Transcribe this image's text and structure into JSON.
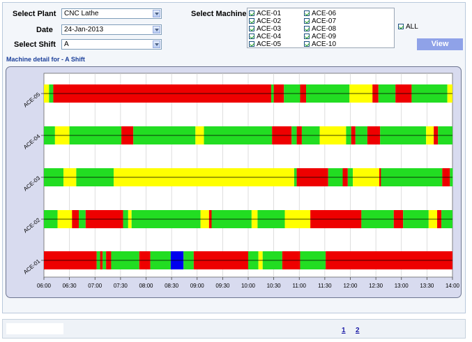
{
  "filters": {
    "plant_label": "Select Plant",
    "plant_value": "CNC Lathe",
    "date_label": "Date",
    "date_value": "24-Jan-2013",
    "shift_label": "Select Shift",
    "shift_value": "A",
    "machine_label": "Select Machine",
    "machines": [
      "ACE-01",
      "ACE-02",
      "ACE-03",
      "ACE-04",
      "ACE-05",
      "ACE-06",
      "ACE-07",
      "ACE-08",
      "ACE-09",
      "ACE-10"
    ],
    "all_label": "ALL",
    "view_label": "View"
  },
  "section_title": "Machine detail for - A Shift",
  "pagination": [
    "1",
    "2"
  ],
  "chart_data": {
    "type": "timeline",
    "x_ticks": [
      "06:00",
      "06:30",
      "07:00",
      "07:30",
      "08:00",
      "08:30",
      "09:00",
      "09:30",
      "10:00",
      "10:30",
      "11:00",
      "11:30",
      "12:00",
      "12:30",
      "13:00",
      "13:30",
      "14:00"
    ],
    "x_range": [
      "06:00",
      "14:00"
    ],
    "grid": true,
    "colors": {
      "R": "#ee0000",
      "G": "#22dd22",
      "Y": "#ffff00",
      "B": "#0000ee"
    },
    "rows": [
      {
        "name": "ACE-05",
        "segments": [
          [
            "06:00",
            "06:06",
            "Y"
          ],
          [
            "06:06",
            "06:11",
            "G"
          ],
          [
            "06:11",
            "10:27",
            "R"
          ],
          [
            "10:27",
            "10:30",
            "G"
          ],
          [
            "10:30",
            "10:42",
            "R"
          ],
          [
            "10:42",
            "11:01",
            "G"
          ],
          [
            "11:01",
            "11:08",
            "R"
          ],
          [
            "11:08",
            "11:59",
            "G"
          ],
          [
            "11:59",
            "12:26",
            "Y"
          ],
          [
            "12:26",
            "12:33",
            "R"
          ],
          [
            "12:33",
            "12:53",
            "G"
          ],
          [
            "12:53",
            "13:12",
            "R"
          ],
          [
            "13:12",
            "13:54",
            "G"
          ],
          [
            "13:54",
            "14:31",
            "Y"
          ]
        ]
      },
      {
        "name": "ACE-04",
        "segments": [
          [
            "06:00",
            "06:13",
            "G"
          ],
          [
            "06:13",
            "06:30",
            "Y"
          ],
          [
            "06:30",
            "07:31",
            "G"
          ],
          [
            "07:31",
            "07:45",
            "R"
          ],
          [
            "07:45",
            "08:58",
            "G"
          ],
          [
            "08:58",
            "09:08",
            "Y"
          ],
          [
            "09:08",
            "10:28",
            "G"
          ],
          [
            "10:28",
            "10:51",
            "R"
          ],
          [
            "10:51",
            "10:57",
            "G"
          ],
          [
            "10:57",
            "11:03",
            "R"
          ],
          [
            "11:03",
            "11:24",
            "G"
          ],
          [
            "11:24",
            "11:55",
            "Y"
          ],
          [
            "11:55",
            "12:01",
            "G"
          ],
          [
            "12:01",
            "12:06",
            "R"
          ],
          [
            "12:06",
            "12:20",
            "G"
          ],
          [
            "12:20",
            "12:35",
            "R"
          ],
          [
            "12:35",
            "13:29",
            "G"
          ],
          [
            "13:29",
            "13:38",
            "Y"
          ],
          [
            "13:38",
            "13:43",
            "R"
          ],
          [
            "13:43",
            "14:00",
            "G"
          ]
        ]
      },
      {
        "name": "ACE-03",
        "segments": [
          [
            "06:00",
            "06:23",
            "G"
          ],
          [
            "06:23",
            "06:38",
            "Y"
          ],
          [
            "06:38",
            "07:22",
            "G"
          ],
          [
            "07:22",
            "10:54",
            "Y"
          ],
          [
            "10:54",
            "10:57",
            "G"
          ],
          [
            "10:57",
            "11:34",
            "R"
          ],
          [
            "11:34",
            "11:51",
            "G"
          ],
          [
            "11:51",
            "11:57",
            "R"
          ],
          [
            "11:57",
            "12:03",
            "G"
          ],
          [
            "12:03",
            "12:34",
            "Y"
          ],
          [
            "12:34",
            "12:36",
            "R"
          ],
          [
            "12:36",
            "13:48",
            "G"
          ],
          [
            "13:48",
            "13:57",
            "R"
          ],
          [
            "13:57",
            "14:01",
            "G"
          ],
          [
            "14:01",
            "14:22",
            "R"
          ],
          [
            "14:22",
            "14:25",
            "G"
          ]
        ]
      },
      {
        "name": "ACE-02",
        "segments": [
          [
            "06:00",
            "06:16",
            "G"
          ],
          [
            "06:16",
            "06:33",
            "Y"
          ],
          [
            "06:33",
            "06:41",
            "R"
          ],
          [
            "06:41",
            "06:49",
            "G"
          ],
          [
            "06:49",
            "07:33",
            "R"
          ],
          [
            "07:33",
            "07:39",
            "G"
          ],
          [
            "07:39",
            "07:43",
            "Y"
          ],
          [
            "07:43",
            "09:04",
            "G"
          ],
          [
            "09:04",
            "09:14",
            "Y"
          ],
          [
            "09:14",
            "09:17",
            "R"
          ],
          [
            "09:17",
            "10:04",
            "G"
          ],
          [
            "10:04",
            "10:11",
            "Y"
          ],
          [
            "10:11",
            "10:43",
            "G"
          ],
          [
            "10:43",
            "11:13",
            "Y"
          ],
          [
            "11:13",
            "12:13",
            "R"
          ],
          [
            "12:13",
            "12:51",
            "G"
          ],
          [
            "12:51",
            "13:02",
            "R"
          ],
          [
            "13:02",
            "13:32",
            "G"
          ],
          [
            "13:32",
            "13:42",
            "Y"
          ],
          [
            "13:42",
            "13:47",
            "R"
          ],
          [
            "13:47",
            "14:00",
            "G"
          ]
        ]
      },
      {
        "name": "ACE-01",
        "segments": [
          [
            "06:00",
            "07:02",
            "R"
          ],
          [
            "07:02",
            "07:06",
            "G"
          ],
          [
            "07:06",
            "07:09",
            "R"
          ],
          [
            "07:09",
            "07:13",
            "G"
          ],
          [
            "07:13",
            "07:19",
            "R"
          ],
          [
            "07:19",
            "07:52",
            "G"
          ],
          [
            "07:52",
            "08:05",
            "R"
          ],
          [
            "08:05",
            "08:29",
            "G"
          ],
          [
            "08:29",
            "08:44",
            "B"
          ],
          [
            "08:44",
            "08:56",
            "G"
          ],
          [
            "08:56",
            "10:00",
            "R"
          ],
          [
            "10:00",
            "10:12",
            "G"
          ],
          [
            "10:12",
            "10:17",
            "Y"
          ],
          [
            "10:17",
            "10:40",
            "G"
          ],
          [
            "10:40",
            "11:01",
            "R"
          ],
          [
            "11:01",
            "11:31",
            "G"
          ],
          [
            "11:31",
            "14:00",
            "R"
          ]
        ]
      }
    ]
  }
}
